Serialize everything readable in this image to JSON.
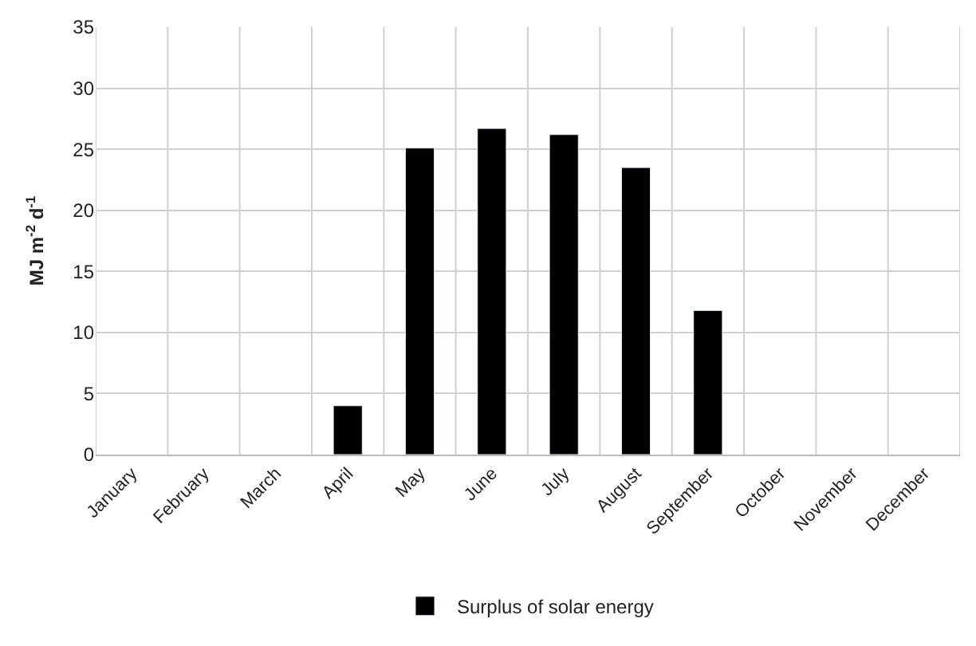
{
  "chart_data": {
    "type": "bar",
    "ylabel": "MJ m$^{-2}$ d$^{-1}$",
    "categories": [
      "January",
      "February",
      "March",
      "April",
      "May",
      "June",
      "July",
      "August",
      "September",
      "October",
      "November",
      "December"
    ],
    "series": [
      {
        "name": "Surplus of solar energy",
        "color": "#000000",
        "values": [
          null,
          null,
          null,
          4.0,
          25.1,
          26.7,
          26.2,
          23.5,
          11.8,
          null,
          null,
          null
        ]
      }
    ],
    "ylim": [
      0,
      35
    ],
    "yticks": [
      0,
      5,
      10,
      15,
      20,
      25,
      30,
      35
    ],
    "grid": true,
    "legend": "bottom"
  }
}
